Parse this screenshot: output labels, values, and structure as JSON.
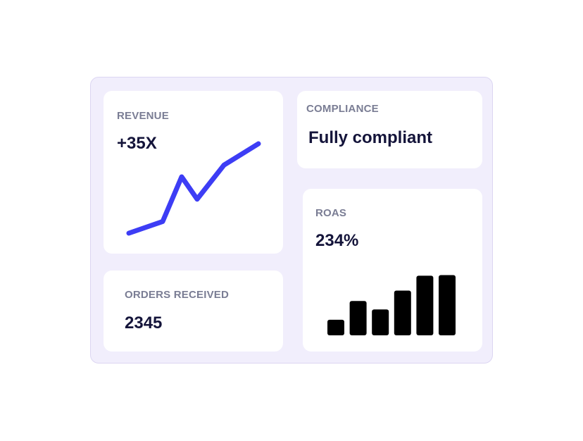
{
  "revenue": {
    "label": "REVENUE",
    "value": "+35X",
    "accent_color": "#3d3df5",
    "trend": [
      0,
      12,
      58,
      35,
      70,
      92
    ]
  },
  "compliance": {
    "label": "COMPLIANCE",
    "value": "Fully compliant"
  },
  "orders": {
    "label": "ORDERS RECEIVED",
    "value": "2345"
  },
  "roas": {
    "label": "ROAS",
    "value": "234%",
    "bar_color": "#000000",
    "bars": [
      24,
      53,
      40,
      69,
      92,
      93
    ]
  }
}
